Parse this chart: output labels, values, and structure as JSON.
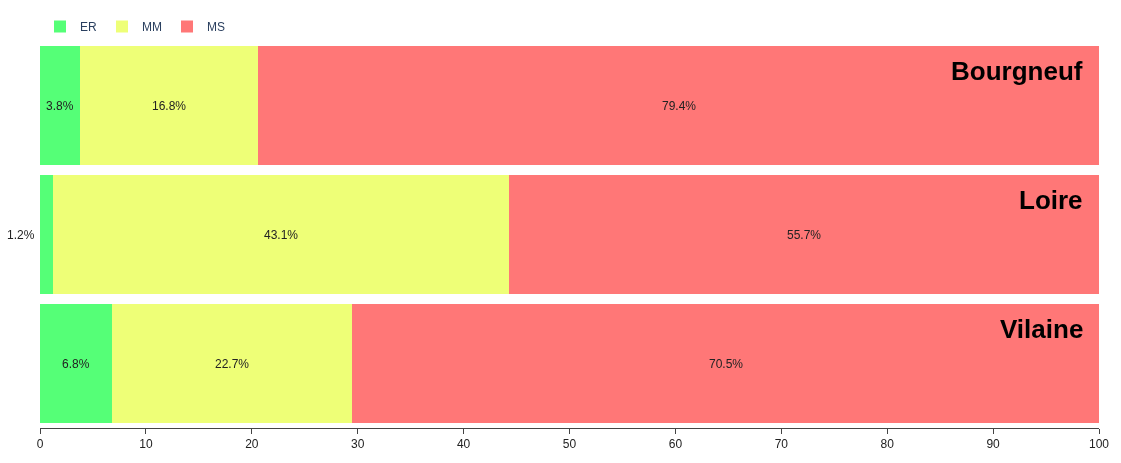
{
  "chart_data": {
    "type": "bar",
    "orientation": "horizontal",
    "stacked": true,
    "categories": [
      "Bourgneuf",
      "Loire",
      "Vilaine"
    ],
    "series": [
      {
        "name": "ER",
        "color": "#55ff77",
        "values": [
          3.8,
          1.2,
          6.8
        ],
        "value_labels": [
          "3.8%",
          "1.2%",
          "6.8%"
        ]
      },
      {
        "name": "MM",
        "color": "#eeff77",
        "values": [
          16.8,
          43.1,
          22.7
        ],
        "value_labels": [
          "16.8%",
          "43.1%",
          "22.7%"
        ]
      },
      {
        "name": "MS",
        "color": "#ff7777",
        "values": [
          79.4,
          55.7,
          70.5
        ],
        "value_labels": [
          "79.4%",
          "55.7%",
          "70.5%"
        ]
      }
    ],
    "xlim": [
      0,
      100
    ],
    "xticks": [
      0,
      10,
      20,
      30,
      40,
      50,
      60,
      70,
      80,
      90,
      100
    ],
    "legend": "top"
  }
}
